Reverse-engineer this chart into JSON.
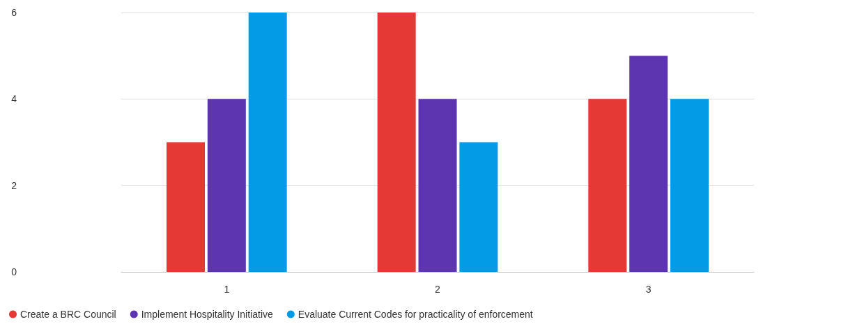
{
  "chart_data": {
    "type": "bar",
    "categories": [
      "1",
      "2",
      "3"
    ],
    "series": [
      {
        "name": "Create a BRC Council",
        "color": "#e53935",
        "values": [
          3,
          6,
          4
        ]
      },
      {
        "name": "Implement Hospitality Initiative",
        "color": "#5e35b1",
        "values": [
          4,
          4,
          5
        ]
      },
      {
        "name": "Evaluate Current Codes for practicality of enforcement",
        "color": "#039be5",
        "values": [
          6,
          3,
          4
        ]
      }
    ],
    "ylim": [
      0,
      6
    ],
    "yticks": [
      0,
      2,
      4,
      6
    ],
    "grid": "y",
    "legend": "bottom left"
  }
}
